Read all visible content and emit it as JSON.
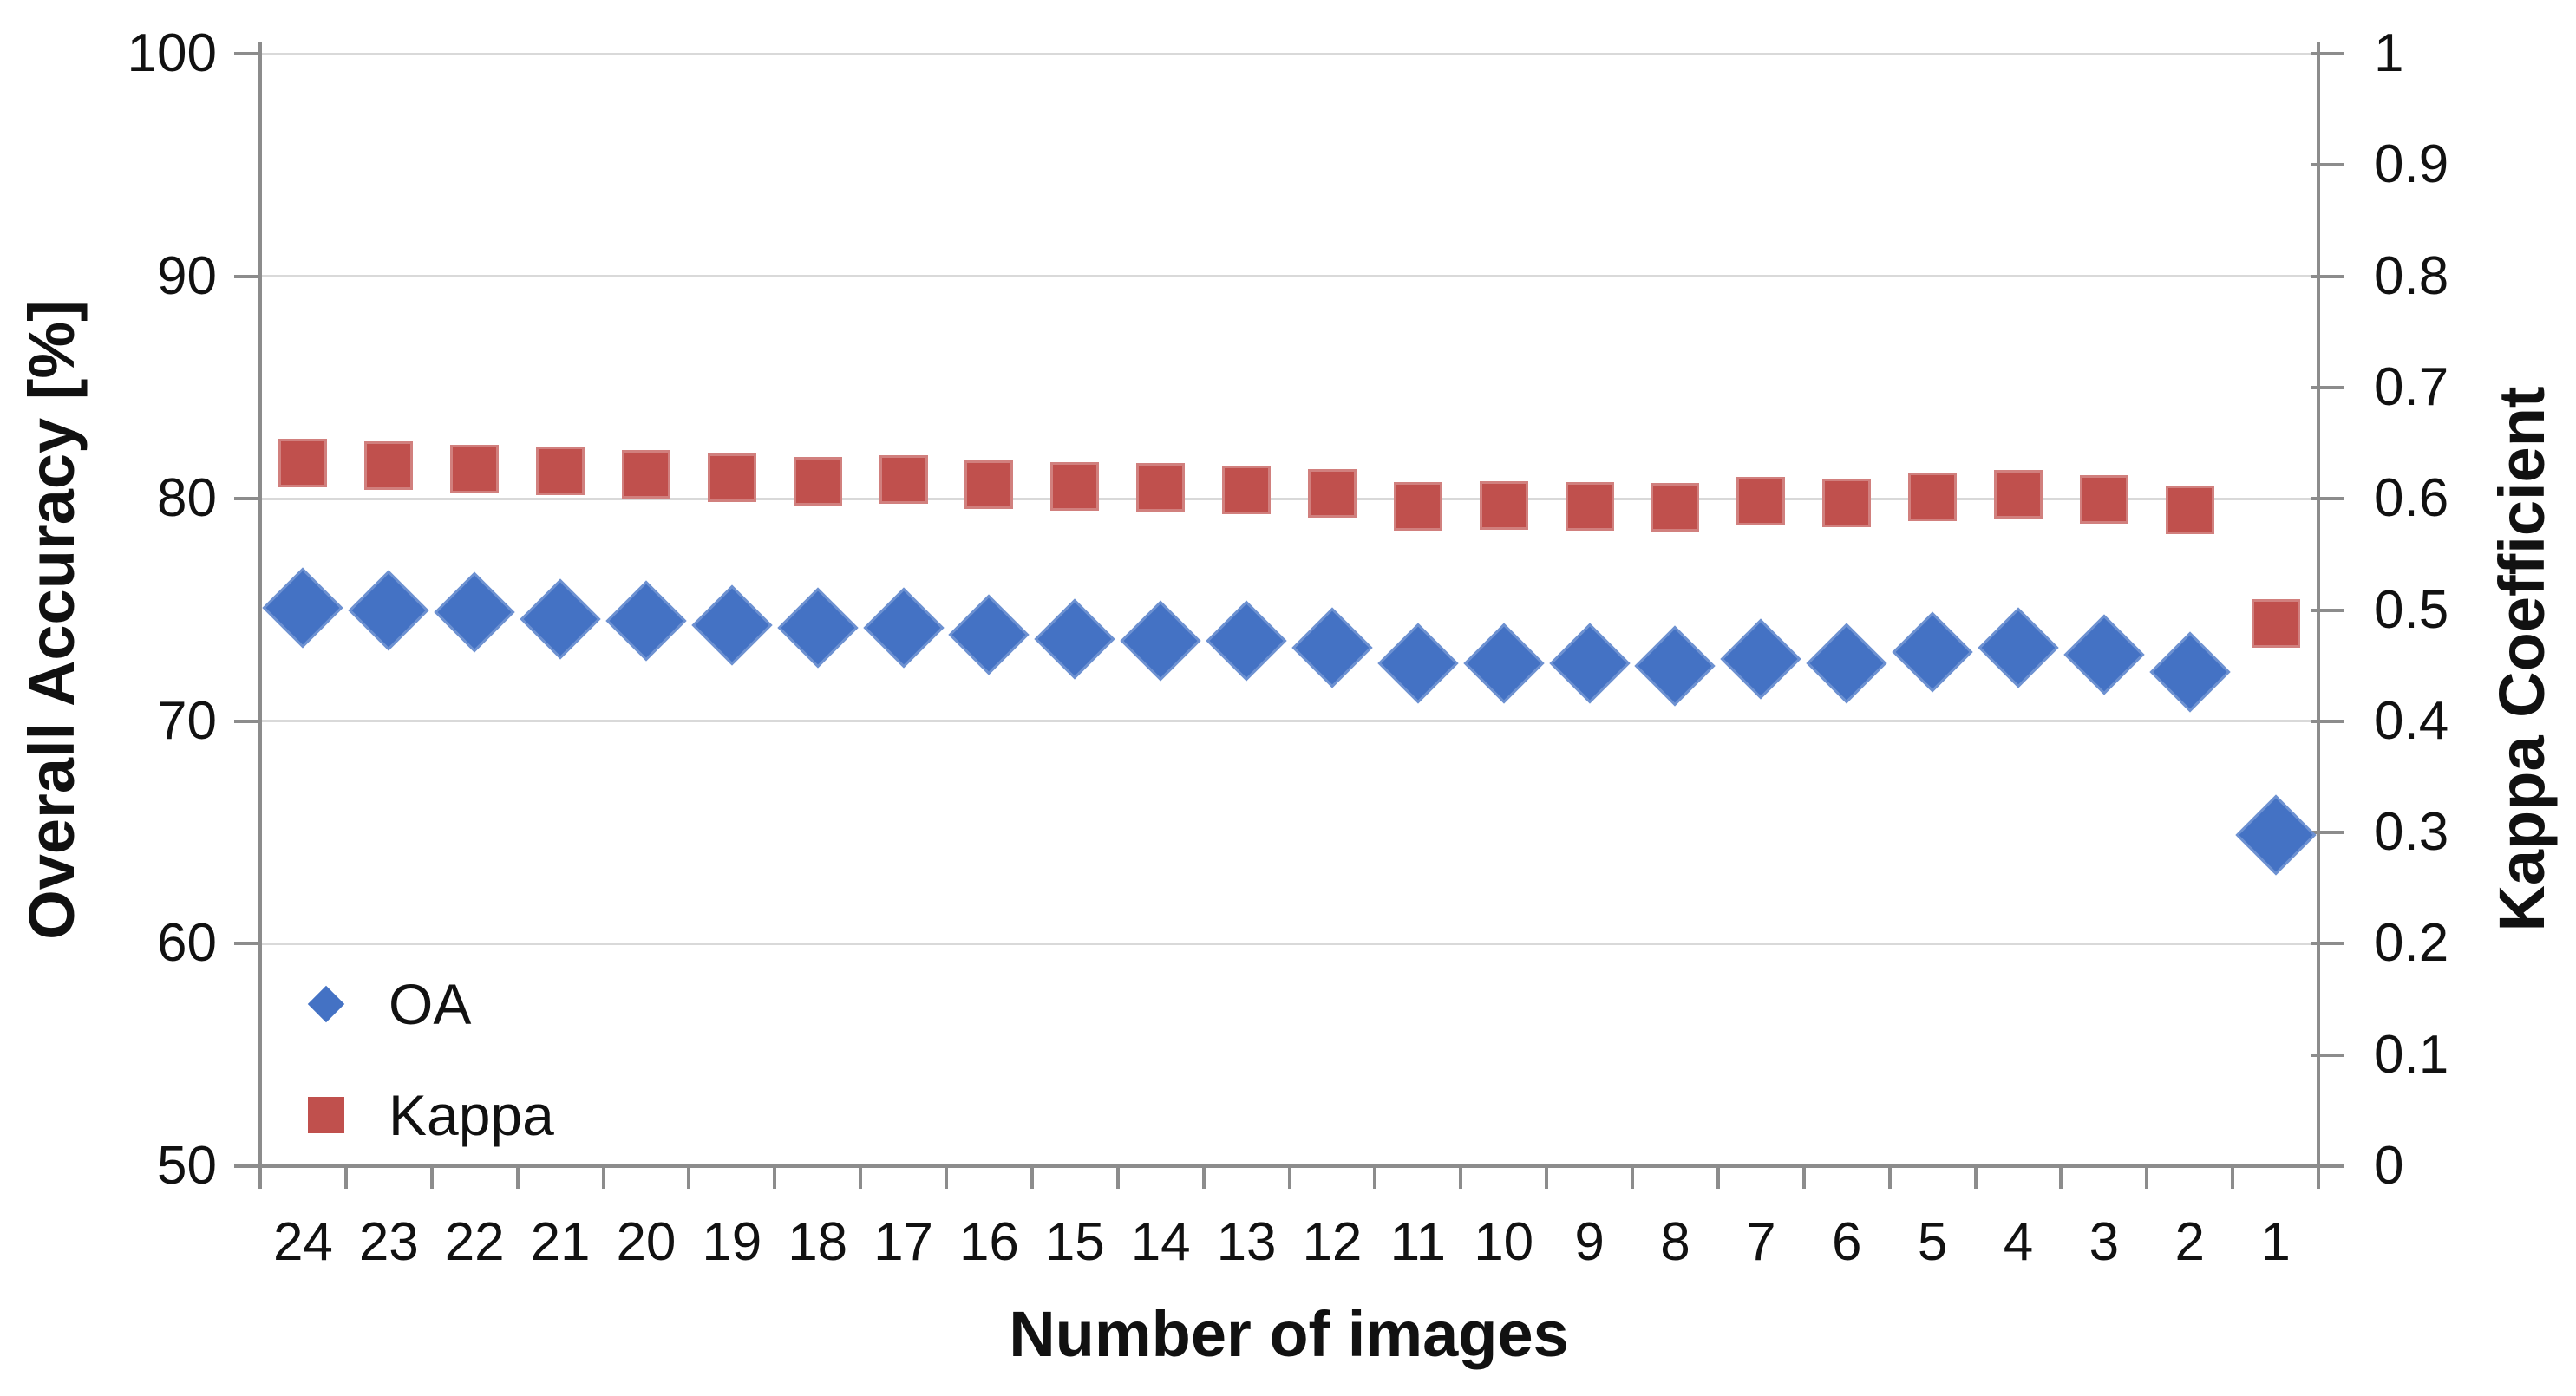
{
  "chart_data": {
    "type": "scatter",
    "title": "",
    "categories": [
      "24",
      "23",
      "22",
      "21",
      "20",
      "19",
      "18",
      "17",
      "16",
      "15",
      "14",
      "13",
      "12",
      "11",
      "10",
      "9",
      "8",
      "7",
      "6",
      "5",
      "4",
      "3",
      "2",
      "1"
    ],
    "x_axis": {
      "label": "Number of images"
    },
    "left_axis": {
      "label": "Overall Accuracy [%]",
      "min": 50,
      "max": 100,
      "tick_values": [
        100,
        90,
        80,
        70,
        60,
        50
      ],
      "tick_labels": [
        "100",
        "90",
        "80",
        "70",
        "60",
        "50"
      ]
    },
    "right_axis": {
      "label": "Kappa Coefficient",
      "min": 0,
      "max": 1,
      "tick_values": [
        1,
        0.9,
        0.8,
        0.7,
        0.6,
        0.5,
        0.4,
        0.3,
        0.2,
        0.1,
        0
      ],
      "tick_labels": [
        "1",
        "0.9",
        "0.8",
        "0.7",
        "0.6",
        "0.5",
        "0.4",
        "0.3",
        "0.2",
        "0.1",
        "0"
      ]
    },
    "series": [
      {
        "name": "OA",
        "axis": "left",
        "marker": "diamond",
        "color": "#4472c4",
        "values": [
          75.1,
          75.0,
          74.9,
          74.6,
          74.5,
          74.3,
          74.2,
          74.2,
          73.9,
          73.7,
          73.6,
          73.6,
          73.3,
          72.6,
          72.6,
          72.6,
          72.5,
          72.8,
          72.6,
          73.1,
          73.3,
          73.0,
          72.2,
          64.9
        ]
      },
      {
        "name": "Kappa",
        "axis": "right",
        "marker": "square",
        "color": "#c0504d",
        "values": [
          0.632,
          0.63,
          0.627,
          0.625,
          0.622,
          0.619,
          0.616,
          0.617,
          0.613,
          0.611,
          0.61,
          0.608,
          0.605,
          0.593,
          0.594,
          0.593,
          0.592,
          0.598,
          0.596,
          0.602,
          0.604,
          0.599,
          0.59,
          0.488
        ]
      }
    ],
    "layout_hints": {
      "grid_on": true,
      "gridline_color": "#d9d9d9",
      "axis_color": "#8c8c8c",
      "legend_position": "inside-bottom-left"
    }
  }
}
